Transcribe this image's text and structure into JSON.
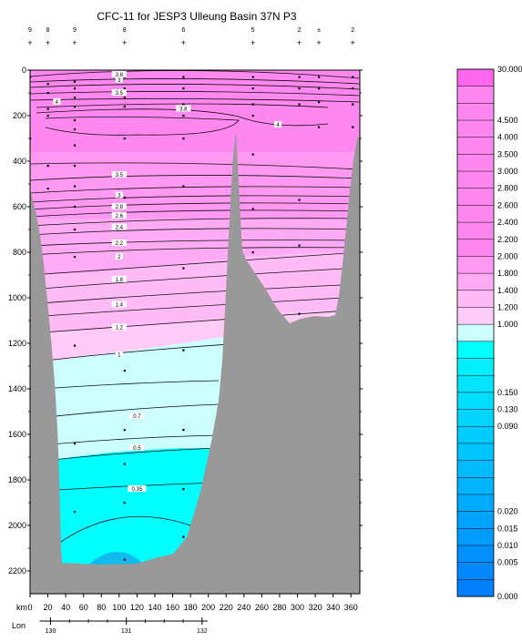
{
  "chart_data": {
    "type": "heatmap",
    "title": "CFC-11 for JESP3 Ulleung Basin 37N P3",
    "xlabel": "km",
    "lon_label": "Lon",
    "xlim": [
      0,
      370
    ],
    "ylim": [
      2300,
      0
    ],
    "x_ticks": [
      0,
      20,
      40,
      60,
      80,
      100,
      120,
      140,
      160,
      180,
      200,
      220,
      240,
      260,
      280,
      300,
      320,
      340,
      360
    ],
    "y_ticks": [
      0,
      200,
      400,
      600,
      800,
      1000,
      1200,
      1400,
      1600,
      1800,
      2000,
      2200
    ],
    "lon_ticks": [
      {
        "km": 23,
        "label": "130"
      },
      {
        "km": 108,
        "label": "131"
      },
      {
        "km": 193,
        "label": "132"
      }
    ],
    "stations": [
      {
        "km": 0,
        "label": "9"
      },
      {
        "km": 20,
        "label": "8"
      },
      {
        "km": 50,
        "label": "9"
      },
      {
        "km": 106,
        "label": "8"
      },
      {
        "km": 172,
        "label": "6"
      },
      {
        "km": 250,
        "label": "5"
      },
      {
        "km": 302,
        "label": "2"
      },
      {
        "km": 324,
        "label": "±"
      },
      {
        "km": 362,
        "label": "2"
      }
    ],
    "colorbar": {
      "levels": [
        "30.000",
        "",
        "",
        "4.500",
        "4.000",
        "3.500",
        "3.000",
        "2.800",
        "2.600",
        "2.400",
        "2.200",
        "2.000",
        "1.800",
        "1.400",
        "1.200",
        "1.000",
        "",
        "",
        "",
        "0.150",
        "0.130",
        "0.090",
        "",
        "",
        "",
        "",
        "0.020",
        "0.015",
        "0.010",
        "0.005",
        "0.000"
      ],
      "colors": [
        "#ff66ee",
        "#ff88f0",
        "#ff88f0",
        "#ff88f0",
        "#ff88f0",
        "#ff88f0",
        "#ff88f0",
        "#ff88f0",
        "#ff88f0",
        "#ff88f0",
        "#ff88f0",
        "#ff99f2",
        "#ffaaf4",
        "#ffbbf6",
        "#ffccf8",
        "#ccffff",
        "#00ffff",
        "#00f0ff",
        "#00e4ff",
        "#00ddff",
        "#00d4ff",
        "#00ccff",
        "#00c4ff",
        "#00bbff",
        "#00b4ff",
        "#00aaff",
        "#00a4ff",
        "#009cff",
        "#0090ff",
        "#0088ff",
        "#0080ff"
      ]
    },
    "contours": [
      {
        "label": "3.8",
        "km": 100,
        "depth": 20
      },
      {
        "label": "3",
        "km": 100,
        "depth": 44
      },
      {
        "label": "3.5",
        "km": 100,
        "depth": 100
      },
      {
        "label": "4",
        "km": 30,
        "depth": 140
      },
      {
        "label": "3.8",
        "km": 172,
        "depth": 170
      },
      {
        "label": "4",
        "km": 278,
        "depth": 240
      },
      {
        "label": "3.5",
        "km": 100,
        "depth": 460
      },
      {
        "label": "3",
        "km": 100,
        "depth": 550
      },
      {
        "label": "2.8",
        "km": 100,
        "depth": 600
      },
      {
        "label": "2.6",
        "km": 100,
        "depth": 640
      },
      {
        "label": "2.4",
        "km": 100,
        "depth": 690
      },
      {
        "label": "2.2",
        "km": 100,
        "depth": 760
      },
      {
        "label": "2",
        "km": 100,
        "depth": 820
      },
      {
        "label": "1.8",
        "km": 100,
        "depth": 920
      },
      {
        "label": "1.4",
        "km": 100,
        "depth": 1030
      },
      {
        "label": "1.2",
        "km": 100,
        "depth": 1130
      },
      {
        "label": "1",
        "km": 100,
        "depth": 1250
      },
      {
        "label": "0.7",
        "km": 120,
        "depth": 1520
      },
      {
        "label": "0.5",
        "km": 120,
        "depth": 1660
      },
      {
        "label": "0.35",
        "km": 120,
        "depth": 1840
      }
    ]
  }
}
